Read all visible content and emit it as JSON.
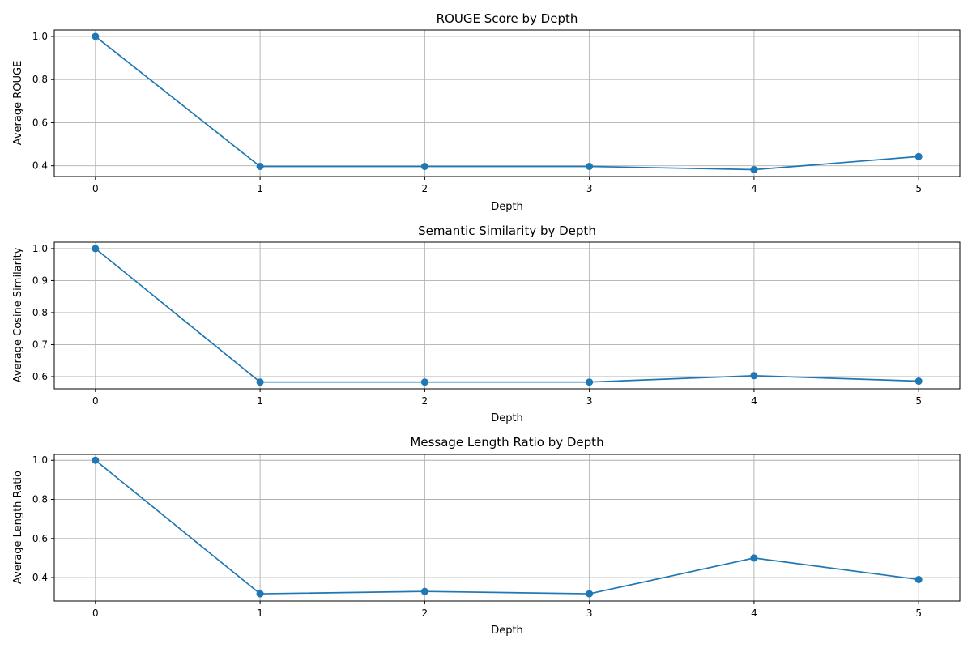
{
  "chart_data": [
    {
      "type": "line",
      "title": "ROUGE Score by Depth",
      "xlabel": "Depth",
      "ylabel": "Average ROUGE",
      "x": [
        0,
        1,
        2,
        3,
        4,
        5
      ],
      "xticks": [
        "0",
        "1",
        "2",
        "3",
        "4",
        "5"
      ],
      "xlim": [
        -0.25,
        5.25
      ],
      "ylim": [
        0.35,
        1.03
      ],
      "yticks": [
        "0.4",
        "0.6",
        "0.8",
        "1.0"
      ],
      "grid": true,
      "series": [
        {
          "values": [
            1.0,
            0.397,
            0.397,
            0.397,
            0.382,
            0.443
          ],
          "color": "#1f77b4",
          "marker": "circle"
        }
      ]
    },
    {
      "type": "line",
      "title": "Semantic Similarity by Depth",
      "xlabel": "Depth",
      "ylabel": "Average Cosine Similarity",
      "x": [
        0,
        1,
        2,
        3,
        4,
        5
      ],
      "xticks": [
        "0",
        "1",
        "2",
        "3",
        "4",
        "5"
      ],
      "xlim": [
        -0.25,
        5.25
      ],
      "ylim": [
        0.562,
        1.02
      ],
      "yticks": [
        "0.6",
        "0.7",
        "0.8",
        "0.9",
        "1.0"
      ],
      "grid": true,
      "series": [
        {
          "values": [
            1.0,
            0.583,
            0.583,
            0.583,
            0.603,
            0.586
          ],
          "color": "#1f77b4",
          "marker": "circle"
        }
      ]
    },
    {
      "type": "line",
      "title": "Message Length Ratio by Depth",
      "xlabel": "Depth",
      "ylabel": "Average Length Ratio",
      "x": [
        0,
        1,
        2,
        3,
        4,
        5
      ],
      "xticks": [
        "0",
        "1",
        "2",
        "3",
        "4",
        "5"
      ],
      "xlim": [
        -0.25,
        5.25
      ],
      "ylim": [
        0.28,
        1.03
      ],
      "yticks": [
        "0.4",
        "0.6",
        "0.8",
        "1.0"
      ],
      "grid": true,
      "series": [
        {
          "values": [
            1.0,
            0.317,
            0.329,
            0.317,
            0.5,
            0.39
          ],
          "color": "#1f77b4",
          "marker": "circle"
        }
      ]
    }
  ]
}
